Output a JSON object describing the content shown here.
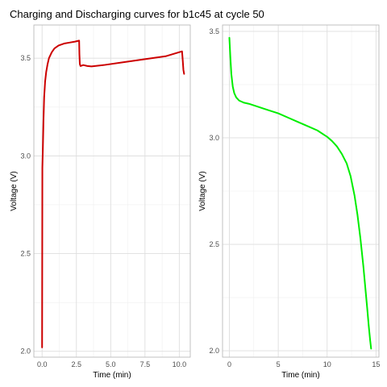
{
  "title": "Charging and Discharging curves for b1c45 at cycle 50",
  "chart_data": [
    {
      "type": "line",
      "name_panel": "charge",
      "xlabel": "Time (min)",
      "ylabel": "Voltage (V)",
      "xlim": [
        -0.6,
        10.8
      ],
      "ylim": [
        1.97,
        3.67
      ],
      "xticks": [
        0,
        2.5,
        5,
        7.5,
        10
      ],
      "xtick_labels": [
        "0.0",
        "2.5",
        "5.0",
        "7.5",
        "10.0"
      ],
      "yticks": [
        2.0,
        2.5,
        3.0,
        3.5
      ],
      "ytick_labels": [
        "2.0",
        "2.5",
        "3.0",
        "3.5"
      ],
      "grid": true,
      "line_color": "#cc0000",
      "series": [
        {
          "x": [
            0,
            0.02,
            0.06,
            0.1,
            0.15,
            0.22,
            0.3,
            0.4,
            0.5,
            0.7,
            0.9,
            1.2,
            1.6,
            2.0,
            2.4,
            2.7,
            2.72,
            2.75,
            2.8,
            3.0,
            3.3,
            3.6,
            4.5,
            6.0,
            7.5,
            9.0,
            10.2,
            10.25,
            10.3,
            10.35
          ],
          "y": [
            2.02,
            2.94,
            3.05,
            3.18,
            3.3,
            3.38,
            3.43,
            3.47,
            3.5,
            3.53,
            3.55,
            3.565,
            3.575,
            3.58,
            3.585,
            3.59,
            3.52,
            3.47,
            3.46,
            3.465,
            3.46,
            3.458,
            3.465,
            3.48,
            3.495,
            3.51,
            3.535,
            3.49,
            3.44,
            3.42
          ]
        }
      ]
    },
    {
      "type": "line",
      "name_panel": "discharge",
      "xlabel": "Time (min)",
      "ylabel": "Voltage (V)",
      "xlim": [
        -0.7,
        15.3
      ],
      "ylim": [
        1.97,
        3.53
      ],
      "xticks": [
        0,
        5,
        10,
        15
      ],
      "xtick_labels": [
        "0",
        "5",
        "10",
        "15"
      ],
      "yticks": [
        2.0,
        2.5,
        3.0,
        3.5
      ],
      "ytick_labels": [
        "2.0",
        "2.5",
        "3.0",
        "3.5"
      ],
      "grid": true,
      "line_color": "#00ee00",
      "series": [
        {
          "x": [
            0,
            0.1,
            0.2,
            0.35,
            0.5,
            0.7,
            1.0,
            1.5,
            2,
            3,
            4,
            5,
            6,
            7,
            8,
            9,
            10,
            10.5,
            11,
            11.5,
            12,
            12.4,
            12.8,
            13.1,
            13.4,
            13.7,
            13.9,
            14.1,
            14.25,
            14.4,
            14.5
          ],
          "y": [
            3.47,
            3.38,
            3.3,
            3.24,
            3.21,
            3.19,
            3.175,
            3.165,
            3.16,
            3.145,
            3.13,
            3.115,
            3.095,
            3.075,
            3.055,
            3.035,
            3.005,
            2.985,
            2.96,
            2.925,
            2.88,
            2.82,
            2.73,
            2.64,
            2.53,
            2.4,
            2.3,
            2.2,
            2.12,
            2.05,
            2.01
          ]
        }
      ]
    }
  ]
}
